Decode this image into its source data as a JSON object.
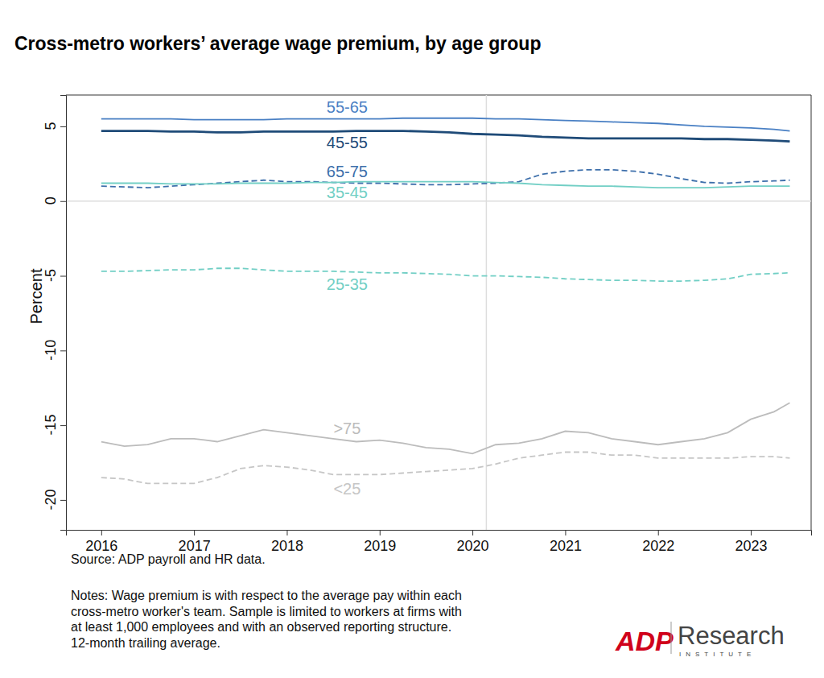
{
  "chart_data": {
    "type": "line",
    "title": "Cross-metro workers’ average wage premium, by age group",
    "y_label": "Percent",
    "source": "Source: ADP payroll and HR data.",
    "notes": [
      "Notes: Wage premium is with respect to the average pay within each",
      "cross-metro worker's team. Sample is limited to workers at firms with",
      "at least 1,000 employees and with an observed reporting structure.",
      "12-month trailing average."
    ],
    "logo": {
      "mark": "ADP",
      "name": "Research",
      "sub": "INSTITUTE"
    },
    "x": [
      2016,
      2016.25,
      2016.5,
      2016.75,
      2017,
      2017.25,
      2017.5,
      2017.75,
      2018,
      2018.25,
      2018.5,
      2018.75,
      2019,
      2019.25,
      2019.5,
      2019.75,
      2020,
      2020.25,
      2020.5,
      2020.75,
      2021,
      2021.25,
      2021.5,
      2021.75,
      2022,
      2022.25,
      2022.5,
      2022.75,
      2023,
      2023.25,
      2023.42
    ],
    "xlim": [
      2015.62,
      2023.65
    ],
    "xticks": [
      2016,
      2017,
      2018,
      2019,
      2020,
      2021,
      2022,
      2023
    ],
    "ylim": [
      -22,
      7.1
    ],
    "yticks": [
      -20,
      -15,
      -10,
      -5,
      0,
      5
    ],
    "grid": false,
    "reference_lines": {
      "x": [
        2020.15
      ],
      "y": [
        0
      ]
    },
    "series": [
      {
        "name": "55-65",
        "color": "#4a80c4",
        "line_style": "solid",
        "values": [
          5.5,
          5.5,
          5.5,
          5.5,
          5.45,
          5.45,
          5.45,
          5.45,
          5.5,
          5.5,
          5.5,
          5.5,
          5.5,
          5.55,
          5.55,
          5.55,
          5.55,
          5.5,
          5.5,
          5.45,
          5.4,
          5.35,
          5.3,
          5.25,
          5.2,
          5.1,
          5.0,
          4.95,
          4.9,
          4.8,
          4.7
        ]
      },
      {
        "name": "45-55",
        "color": "#1f4b78",
        "line_style": "solid",
        "values": [
          4.7,
          4.7,
          4.7,
          4.65,
          4.65,
          4.6,
          4.6,
          4.65,
          4.65,
          4.65,
          4.65,
          4.7,
          4.7,
          4.7,
          4.65,
          4.6,
          4.5,
          4.45,
          4.4,
          4.3,
          4.25,
          4.2,
          4.2,
          4.2,
          4.2,
          4.2,
          4.15,
          4.15,
          4.1,
          4.05,
          4.0
        ]
      },
      {
        "name": "65-75",
        "color": "#3d6fab",
        "line_style": "dashed",
        "values": [
          1.0,
          0.95,
          0.9,
          1.0,
          1.1,
          1.2,
          1.3,
          1.4,
          1.3,
          1.3,
          1.25,
          1.2,
          1.2,
          1.15,
          1.1,
          1.1,
          1.15,
          1.2,
          1.3,
          1.8,
          2.0,
          2.1,
          2.1,
          2.0,
          1.8,
          1.5,
          1.25,
          1.2,
          1.3,
          1.35,
          1.4
        ]
      },
      {
        "name": "35-45",
        "color": "#72cfc5",
        "line_style": "solid",
        "values": [
          1.2,
          1.2,
          1.2,
          1.15,
          1.15,
          1.15,
          1.2,
          1.2,
          1.2,
          1.25,
          1.25,
          1.3,
          1.3,
          1.3,
          1.3,
          1.3,
          1.3,
          1.25,
          1.2,
          1.1,
          1.05,
          1.0,
          1.0,
          0.95,
          0.9,
          0.9,
          0.9,
          0.95,
          1.0,
          1.0,
          1.0
        ]
      },
      {
        "name": "25-35",
        "color": "#72cfc5",
        "line_style": "dashed",
        "values": [
          -4.7,
          -4.7,
          -4.65,
          -4.6,
          -4.6,
          -4.5,
          -4.5,
          -4.6,
          -4.7,
          -4.7,
          -4.7,
          -4.75,
          -4.8,
          -4.8,
          -4.85,
          -4.9,
          -5.0,
          -5.0,
          -5.05,
          -5.1,
          -5.2,
          -5.25,
          -5.3,
          -5.3,
          -5.35,
          -5.35,
          -5.3,
          -5.2,
          -4.9,
          -4.85,
          -4.8
        ]
      },
      {
        "name": ">75",
        "color": "#bcbcbc",
        "line_style": "solid",
        "values": [
          -16.1,
          -16.4,
          -16.3,
          -15.9,
          -15.9,
          -16.1,
          -15.7,
          -15.3,
          -15.5,
          -15.7,
          -15.9,
          -16.1,
          -16.0,
          -16.2,
          -16.5,
          -16.6,
          -16.9,
          -16.3,
          -16.2,
          -15.9,
          -15.4,
          -15.5,
          -15.9,
          -16.1,
          -16.3,
          -16.1,
          -15.9,
          -15.5,
          -14.6,
          -14.1,
          -13.5
        ]
      },
      {
        "name": "<25",
        "color": "#c6c6c6",
        "line_style": "dashed",
        "values": [
          -18.5,
          -18.6,
          -18.9,
          -18.9,
          -18.9,
          -18.5,
          -17.9,
          -17.7,
          -17.8,
          -18.0,
          -18.3,
          -18.3,
          -18.3,
          -18.2,
          -18.1,
          -18.0,
          -17.9,
          -17.6,
          -17.2,
          -17.0,
          -16.8,
          -16.8,
          -17.0,
          -17.0,
          -17.2,
          -17.2,
          -17.2,
          -17.2,
          -17.1,
          -17.1,
          -17.2
        ]
      }
    ]
  }
}
